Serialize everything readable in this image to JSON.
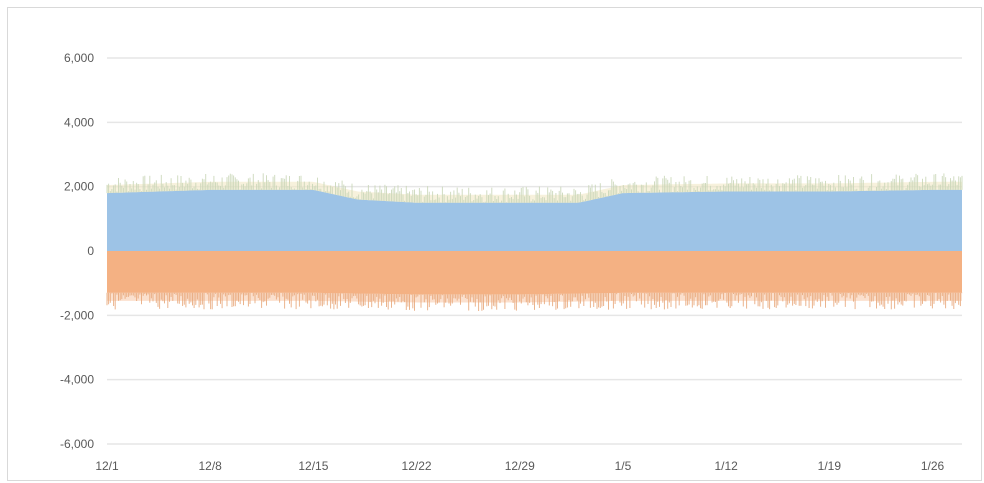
{
  "chart_data": {
    "type": "area",
    "title": "",
    "xlabel": "",
    "ylabel": "",
    "ylim": [
      -6000,
      6000
    ],
    "y_ticks": [
      6000,
      4000,
      2000,
      0,
      -2000,
      -4000,
      -6000
    ],
    "y_tick_labels": [
      "6,000",
      "4,000",
      "2,000",
      "0",
      "-2,000",
      "-4,000",
      "-6,000"
    ],
    "x_tick_labels": [
      "12/1",
      "12/8",
      "12/15",
      "12/22",
      "12/29",
      "1/5",
      "1/12",
      "1/19",
      "1/26"
    ],
    "x_range_days": [
      0,
      58
    ],
    "grid": true,
    "legend": "none",
    "series": [
      {
        "color": "#9dc3e6",
        "band_color": "#f2e8c4",
        "spike_color": "#c9d6b8",
        "points": [
          {
            "x": "12/1",
            "y": 1800
          },
          {
            "x": "12/8",
            "y": 1900
          },
          {
            "x": "12/15",
            "y": 1900
          },
          {
            "x": "12/18",
            "y": 1600
          },
          {
            "x": "12/22",
            "y": 1500
          },
          {
            "x": "12/29",
            "y": 1500
          },
          {
            "x": "1/2",
            "y": 1500
          },
          {
            "x": "1/5",
            "y": 1800
          },
          {
            "x": "1/12",
            "y": 1850
          },
          {
            "x": "1/19",
            "y": 1850
          },
          {
            "x": "1/26",
            "y": 1900
          },
          {
            "x": "1/28",
            "y": 1900
          }
        ]
      },
      {
        "color": "#f4b183",
        "band_color": "#f8cbad",
        "spike_color": "#e8a77a",
        "points": [
          {
            "x": "12/1",
            "y": -1300
          },
          {
            "x": "12/8",
            "y": -1300
          },
          {
            "x": "12/15",
            "y": -1300
          },
          {
            "x": "12/22",
            "y": -1350
          },
          {
            "x": "12/29",
            "y": -1350
          },
          {
            "x": "1/5",
            "y": -1300
          },
          {
            "x": "1/12",
            "y": -1300
          },
          {
            "x": "1/19",
            "y": -1300
          },
          {
            "x": "1/26",
            "y": -1300
          },
          {
            "x": "1/28",
            "y": -1300
          }
        ]
      }
    ]
  }
}
